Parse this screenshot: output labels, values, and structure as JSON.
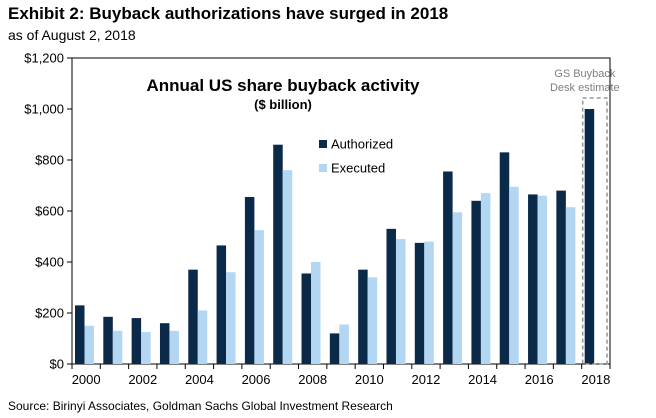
{
  "header": {
    "title": "Exhibit 2: Buyback authorizations have surged in 2018",
    "subtitle": "as of August 2, 2018"
  },
  "footer": {
    "source": "Source: Birinyi Associates, Goldman Sachs Global Investment Research"
  },
  "chart_data": {
    "type": "bar",
    "title": "Annual US share buyback activity",
    "subtitle": "($ billion)",
    "categories": [
      "2000",
      "2001",
      "2002",
      "2003",
      "2004",
      "2005",
      "2006",
      "2007",
      "2008",
      "2009",
      "2010",
      "2011",
      "2012",
      "2013",
      "2014",
      "2015",
      "2016",
      "2017",
      "2018"
    ],
    "x_tick_labels": [
      "2000",
      "",
      "2002",
      "",
      "2004",
      "",
      "2006",
      "",
      "2008",
      "",
      "2010",
      "",
      "2012",
      "",
      "2014",
      "",
      "2016",
      "",
      "2018"
    ],
    "y_tick_labels": [
      "$0",
      "$200",
      "$400",
      "$600",
      "$800",
      "$1,000",
      "$1,200"
    ],
    "y_tick_values": [
      0,
      200,
      400,
      600,
      800,
      1000,
      1200
    ],
    "ylim": [
      0,
      1200
    ],
    "grid": false,
    "legend_position": "center",
    "series": [
      {
        "name": "Authorized",
        "color": "#0b2a4a",
        "values": [
          230,
          185,
          180,
          160,
          370,
          465,
          655,
          860,
          355,
          120,
          370,
          530,
          475,
          755,
          640,
          830,
          665,
          680,
          1000
        ]
      },
      {
        "name": "Executed",
        "color": "#b3d6f2",
        "values": [
          150,
          130,
          125,
          130,
          210,
          360,
          525,
          760,
          400,
          155,
          340,
          490,
          480,
          595,
          670,
          695,
          660,
          615,
          null
        ]
      }
    ],
    "annotation": {
      "lines": [
        "GS Buyback",
        "Desk estimate"
      ]
    }
  }
}
